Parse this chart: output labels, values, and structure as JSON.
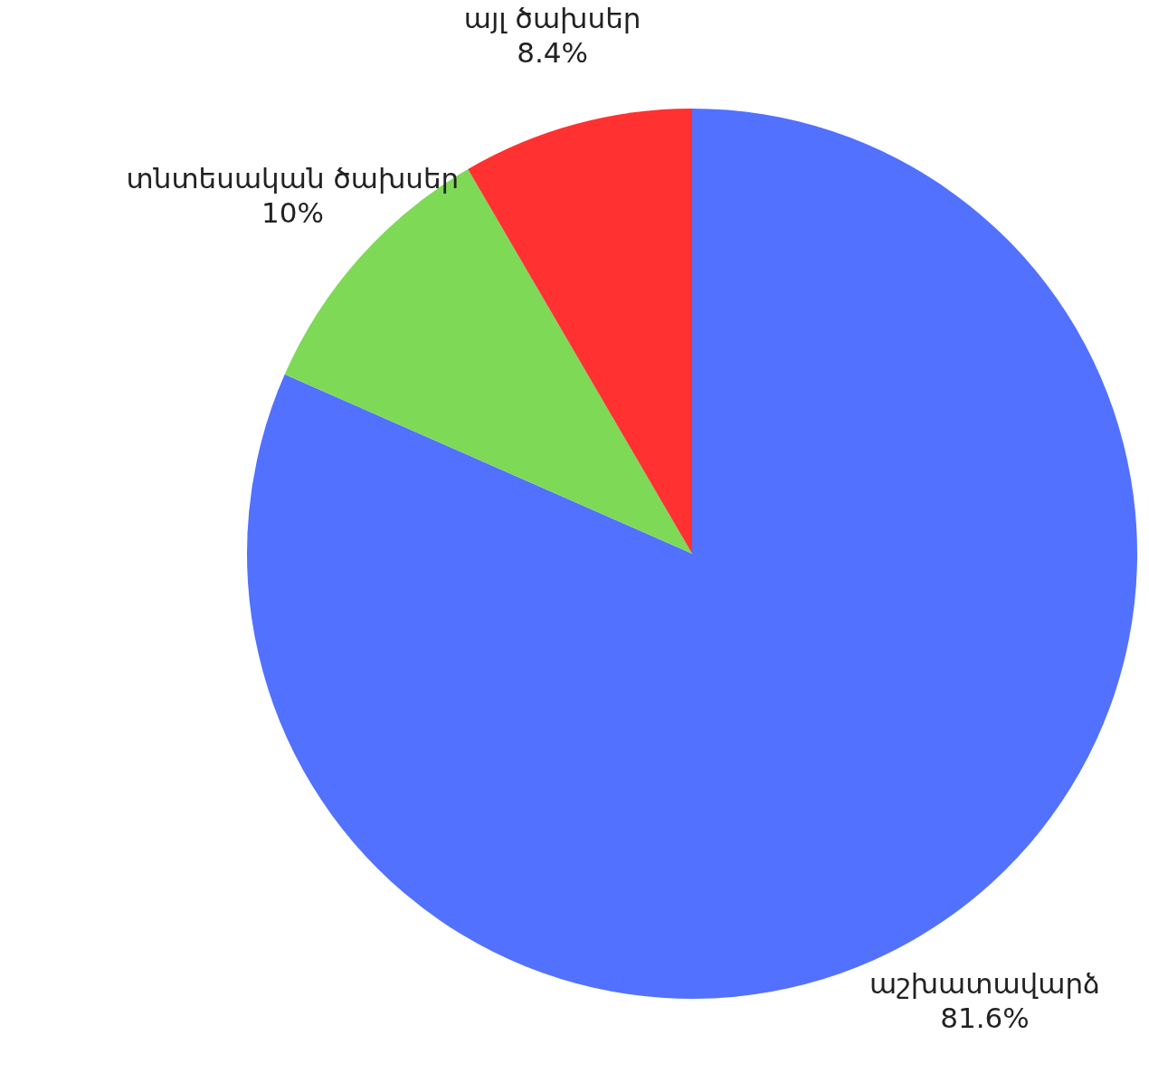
{
  "chart_data": {
    "type": "pie",
    "categories": [
      "աշխատավարձ",
      "տնտեսական ծախսեր",
      "այլ ծախսեր"
    ],
    "values": [
      81.6,
      10,
      8.4
    ],
    "colors": [
      "#5271ff",
      "#7ed957",
      "#ff3131"
    ],
    "value_labels": [
      "81.6%",
      "10%",
      "8.4%"
    ],
    "legend": false
  }
}
